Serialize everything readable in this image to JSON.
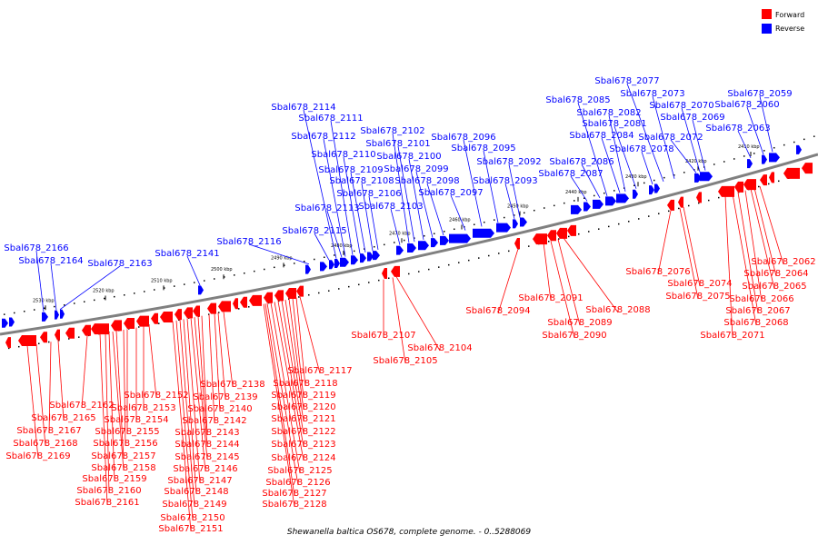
{
  "caption": "Shewanella baltica OS678, complete genome. - 0..5288069",
  "legend": [
    {
      "label": "Forward",
      "color": "#ff0000"
    },
    {
      "label": "Reverse",
      "color": "#0000ff"
    }
  ],
  "colors": {
    "forward": "#ff0000",
    "reverse": "#0000ff",
    "backbone": "#808080"
  },
  "ticks": [
    "2410 kbp",
    "2420 kbp",
    "2430 kbp",
    "2440 kbp",
    "2450 kbp",
    "2460 kbp",
    "2470 kbp",
    "2480 kbp",
    "2490 kbp",
    "2500 kbp",
    "2510 kbp",
    "2520 kbp",
    "2530 kbp"
  ],
  "reverse_labels": [
    "Sbal678_2059",
    "Sbal678_2060",
    "Sbal678_2063",
    "Sbal678_2069",
    "Sbal678_2070",
    "Sbal678_2072",
    "Sbal678_2073",
    "Sbal678_2077",
    "Sbal678_2078",
    "Sbal678_2081",
    "Sbal678_2082",
    "Sbal678_2084",
    "Sbal678_2085",
    "Sbal678_2086",
    "Sbal678_2087",
    "Sbal678_2092",
    "Sbal678_2093",
    "Sbal678_2095",
    "Sbal678_2096",
    "Sbal678_2097",
    "Sbal678_2098",
    "Sbal678_2099",
    "Sbal678_2100",
    "Sbal678_2101",
    "Sbal678_2102",
    "Sbal678_2103",
    "Sbal678_2106",
    "Sbal678_2108",
    "Sbal678_2109",
    "Sbal678_2110",
    "Sbal678_2111",
    "Sbal678_2112",
    "Sbal678_2113",
    "Sbal678_2114",
    "Sbal678_2115",
    "Sbal678_2116",
    "Sbal678_2141",
    "Sbal678_2163",
    "Sbal678_2164",
    "Sbal678_2166"
  ],
  "forward_labels": [
    "Sbal678_2062",
    "Sbal678_2064",
    "Sbal678_2065",
    "Sbal678_2066",
    "Sbal678_2067",
    "Sbal678_2068",
    "Sbal678_2071",
    "Sbal678_2074",
    "Sbal678_2075",
    "Sbal678_2076",
    "Sbal678_2088",
    "Sbal678_2089",
    "Sbal678_2090",
    "Sbal678_2091",
    "Sbal678_2094",
    "Sbal678_2104",
    "Sbal678_2105",
    "Sbal678_2107",
    "Sbal678_2117",
    "Sbal678_2118",
    "Sbal678_2119",
    "Sbal678_2120",
    "Sbal678_2121",
    "Sbal678_2122",
    "Sbal678_2123",
    "Sbal678_2124",
    "Sbal678_2125",
    "Sbal678_2126",
    "Sbal678_2127",
    "Sbal678_2128",
    "Sbal678_2138",
    "Sbal678_2139",
    "Sbal678_2140",
    "Sbal678_2142",
    "Sbal678_2143",
    "Sbal678_2144",
    "Sbal678_2145",
    "Sbal678_2146",
    "Sbal678_2147",
    "Sbal678_2148",
    "Sbal678_2149",
    "Sbal678_2150",
    "Sbal678_2151",
    "Sbal678_2152",
    "Sbal678_2153",
    "Sbal678_2154",
    "Sbal678_2155",
    "Sbal678_2156",
    "Sbal678_2157",
    "Sbal678_2158",
    "Sbal678_2159",
    "Sbal678_2160",
    "Sbal678_2161",
    "Sbal678_2162",
    "Sbal678_2165",
    "Sbal678_2167",
    "Sbal678_2168",
    "Sbal678_2169"
  ]
}
